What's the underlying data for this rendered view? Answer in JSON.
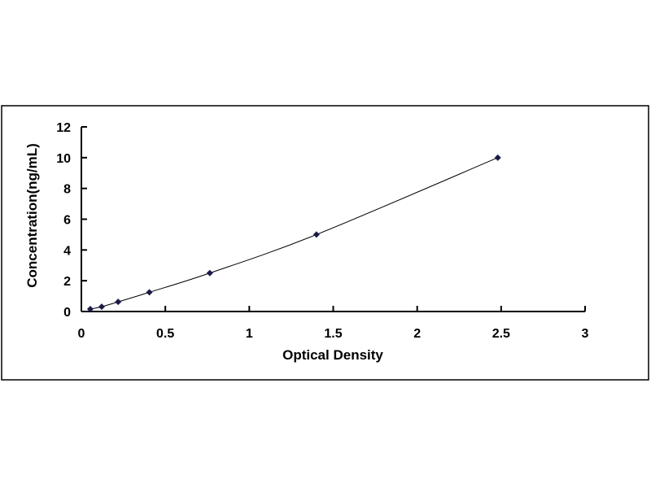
{
  "chart_data": {
    "type": "scatter",
    "title": "",
    "xlabel": "Optical Density",
    "ylabel": "Concentration(ng/mL)",
    "xlim": [
      0,
      3
    ],
    "ylim": [
      0,
      12
    ],
    "xticks": [
      "0",
      "0.5",
      "1",
      "1.5",
      "2",
      "2.5",
      "3"
    ],
    "yticks": [
      "0",
      "2",
      "4",
      "6",
      "8",
      "10",
      "12"
    ],
    "grid": false,
    "trendline": "smooth curve",
    "marker": "diamond",
    "series": [
      {
        "x": [
          0.053,
          0.121,
          0.219,
          0.405,
          0.765,
          1.4,
          2.48
        ],
        "y": [
          0.156,
          0.312,
          0.625,
          1.25,
          2.5,
          5,
          10
        ]
      }
    ],
    "colors": {
      "marker": "#1a1a4a",
      "line": "#000000"
    }
  }
}
